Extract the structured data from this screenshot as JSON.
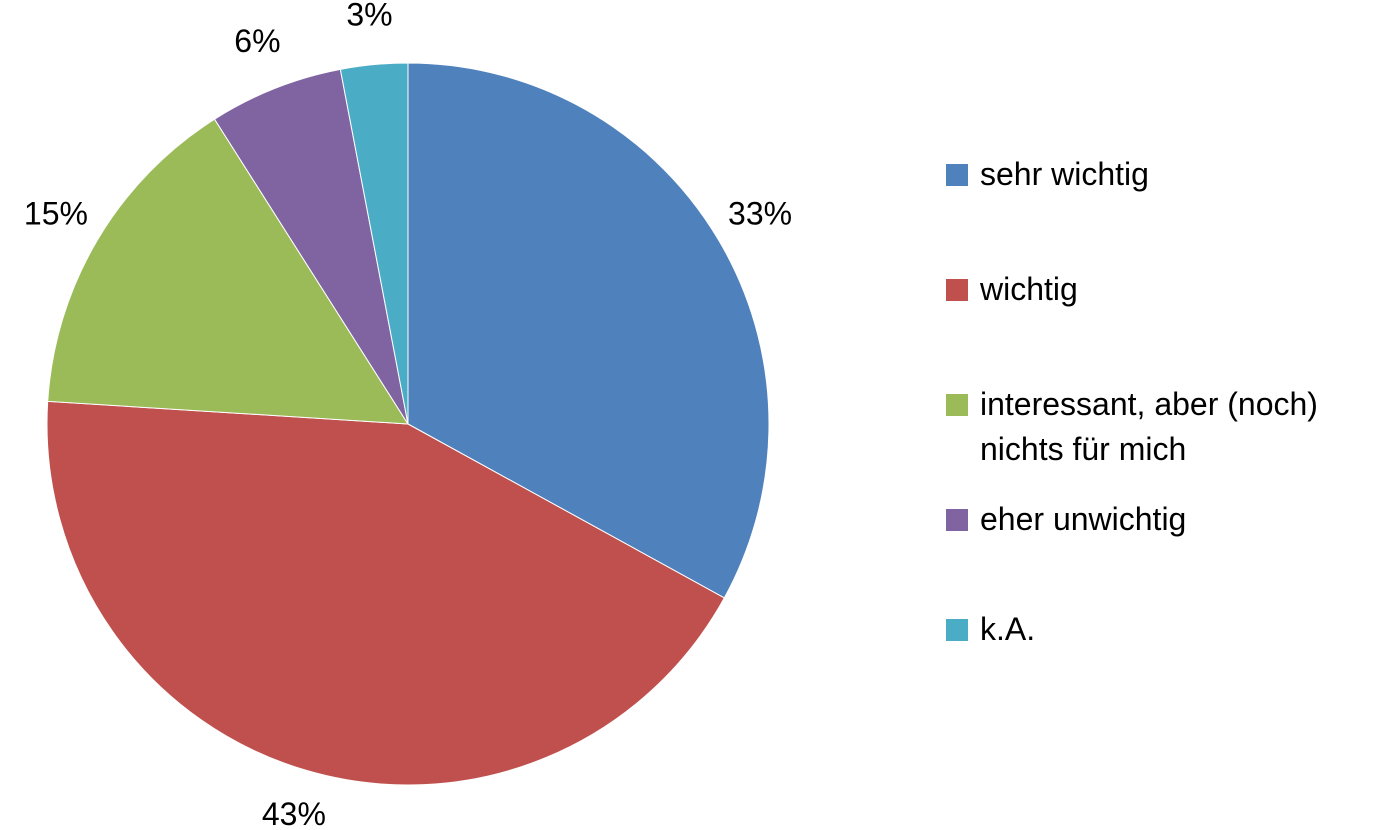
{
  "chart_data": {
    "type": "pie",
    "categories": [
      "sehr wichtig",
      "wichtig",
      "interessant, aber (noch) nichts für mich",
      "eher unwichtig",
      "k.A."
    ],
    "values": [
      33,
      43,
      15,
      6,
      3
    ],
    "value_labels": [
      "33%",
      "43%",
      "15%",
      "6%",
      "3%"
    ],
    "colors": [
      "#4f81bd",
      "#c0504d",
      "#9bbb59",
      "#8064a2",
      "#4bacc6"
    ],
    "legend": "right"
  }
}
